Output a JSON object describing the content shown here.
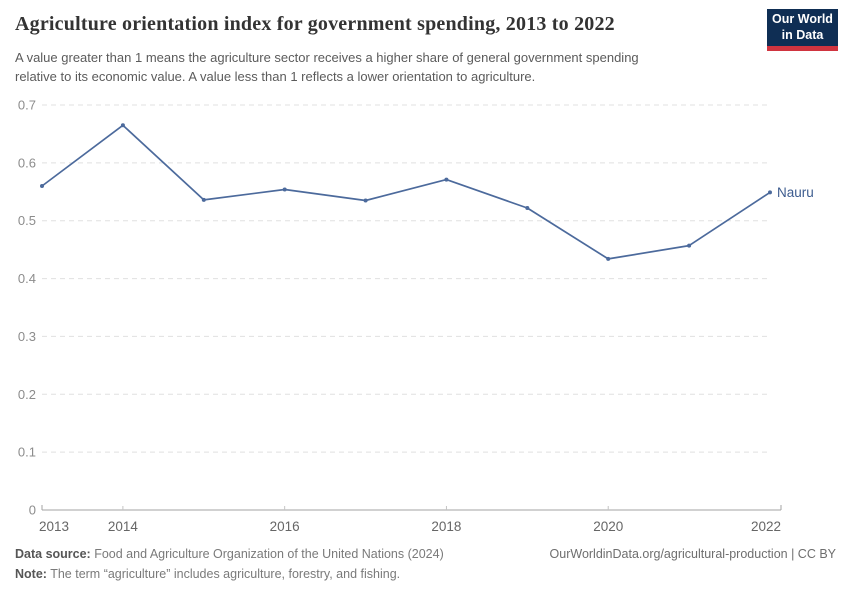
{
  "header": {
    "title": "Agriculture orientation index for government spending, 2013 to 2022",
    "subtitle_line1": "A value greater than 1 means the agriculture sector receives a higher share of general government spending",
    "subtitle_line2": "relative to its economic value. A value less than 1 reflects a lower orientation to agriculture.",
    "logo": {
      "line1": "Our World",
      "line2": "in Data",
      "bg_color": "#0f2e54",
      "accent_color": "#d0343f"
    }
  },
  "chart_data": {
    "type": "line",
    "title": "Agriculture orientation index for government spending, 2013 to 2022",
    "x": [
      2013,
      2014,
      2015,
      2016,
      2017,
      2018,
      2019,
      2020,
      2021,
      2022
    ],
    "series": [
      {
        "name": "Nauru",
        "color": "#4c6a9c",
        "label_color": "#3d5c8f",
        "values": [
          0.56,
          0.665,
          0.536,
          0.554,
          0.535,
          0.571,
          0.522,
          0.434,
          0.457,
          0.549
        ]
      }
    ],
    "xlim": [
      2013,
      2022
    ],
    "ylim": [
      0,
      0.7
    ],
    "y_ticks": [
      0,
      0.1,
      0.2,
      0.3,
      0.4,
      0.5,
      0.6,
      0.7
    ],
    "y_tick_labels": [
      "0",
      "0.1",
      "0.2",
      "0.3",
      "0.4",
      "0.5",
      "0.6",
      "0.7"
    ],
    "x_tick_years": [
      2013,
      2014,
      2016,
      2018,
      2020,
      2022
    ],
    "end_label": "Nauru",
    "grid": "horizontal-dashed",
    "legend_position": "line-end-label",
    "gridline_color": "#e0e0e0",
    "axis_color": "#a3a3a3",
    "tick_color": "#c4c4c4",
    "y_label_color": "#8c8c8c",
    "x_label_color": "#666666"
  },
  "footer": {
    "data_source_label": "Data source:",
    "data_source_text": "Food and Agriculture Organization of the United Nations (2024)",
    "note_label": "Note:",
    "note_text": "The term “agriculture” includes agriculture, forestry, and fishing.",
    "link_text": "OurWorldinData.org/agricultural-production | CC BY"
  }
}
